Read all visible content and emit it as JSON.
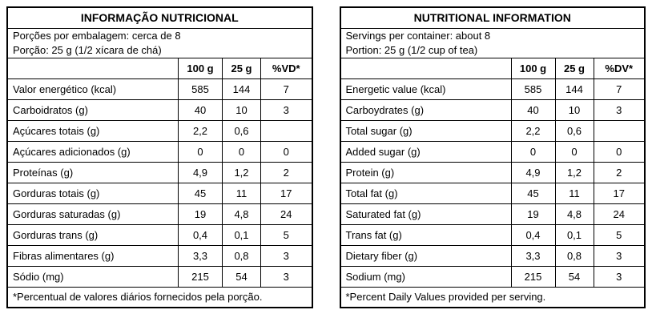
{
  "tables": [
    {
      "title": "INFORMAÇÃO NUTRICIONAL",
      "serving_lines": [
        "Porções por embalagem: cerca de 8",
        "Porção: 25 g (1/2 xícara de chá)"
      ],
      "columns": [
        "100 g",
        "25 g",
        "%VD*"
      ],
      "rows": [
        {
          "label": "Valor energético (kcal)",
          "indent": 0,
          "values": [
            "585",
            "144",
            "7"
          ]
        },
        {
          "label": "Carboidratos (g)",
          "indent": 0,
          "values": [
            "40",
            "10",
            "3"
          ]
        },
        {
          "label": "Açúcares totais (g)",
          "indent": 1,
          "values": [
            "2,2",
            "0,6",
            ""
          ]
        },
        {
          "label": "Açúcares adicionados (g)",
          "indent": 2,
          "values": [
            "0",
            "0",
            "0"
          ]
        },
        {
          "label": "Proteínas (g)",
          "indent": 0,
          "values": [
            "4,9",
            "1,2",
            "2"
          ]
        },
        {
          "label": "Gorduras totais (g)",
          "indent": 0,
          "values": [
            "45",
            "11",
            "17"
          ]
        },
        {
          "label": "Gorduras saturadas (g)",
          "indent": 1,
          "values": [
            "19",
            "4,8",
            "24"
          ]
        },
        {
          "label": "Gorduras trans (g)",
          "indent": 1,
          "values": [
            "0,4",
            "0,1",
            "5"
          ]
        },
        {
          "label": "Fibras alimentares (g)",
          "indent": 0,
          "values": [
            "3,3",
            "0,8",
            "3"
          ]
        },
        {
          "label": "Sódio (mg)",
          "indent": 0,
          "values": [
            "215",
            "54",
            "3"
          ]
        }
      ],
      "footnote": "*Percentual de valores diários fornecidos pela porção."
    },
    {
      "title": "NUTRITIONAL INFORMATION",
      "serving_lines": [
        "Servings per container: about 8",
        "Portion: 25 g (1/2 cup of tea)"
      ],
      "columns": [
        "100 g",
        "25 g",
        "%DV*"
      ],
      "rows": [
        {
          "label": "Energetic value (kcal)",
          "indent": 0,
          "values": [
            "585",
            "144",
            "7"
          ]
        },
        {
          "label": "Carboydrates (g)",
          "indent": 0,
          "values": [
            "40",
            "10",
            "3"
          ]
        },
        {
          "label": "Total sugar (g)",
          "indent": 1,
          "values": [
            "2,2",
            "0,6",
            ""
          ]
        },
        {
          "label": "Added sugar (g)",
          "indent": 2,
          "values": [
            "0",
            "0",
            "0"
          ]
        },
        {
          "label": "Protein (g)",
          "indent": 0,
          "values": [
            "4,9",
            "1,2",
            "2"
          ]
        },
        {
          "label": "Total fat (g)",
          "indent": 0,
          "values": [
            "45",
            "11",
            "17"
          ]
        },
        {
          "label": "Saturated fat (g)",
          "indent": 1,
          "values": [
            "19",
            "4,8",
            "24"
          ]
        },
        {
          "label": "Trans fat (g)",
          "indent": 1,
          "values": [
            "0,4",
            "0,1",
            "5"
          ]
        },
        {
          "label": "Dietary fiber (g)",
          "indent": 0,
          "values": [
            "3,3",
            "0,8",
            "3"
          ]
        },
        {
          "label": "Sodium (mg)",
          "indent": 0,
          "values": [
            "215",
            "54",
            "3"
          ]
        }
      ],
      "footnote": "*Percent Daily Values provided per serving."
    }
  ]
}
